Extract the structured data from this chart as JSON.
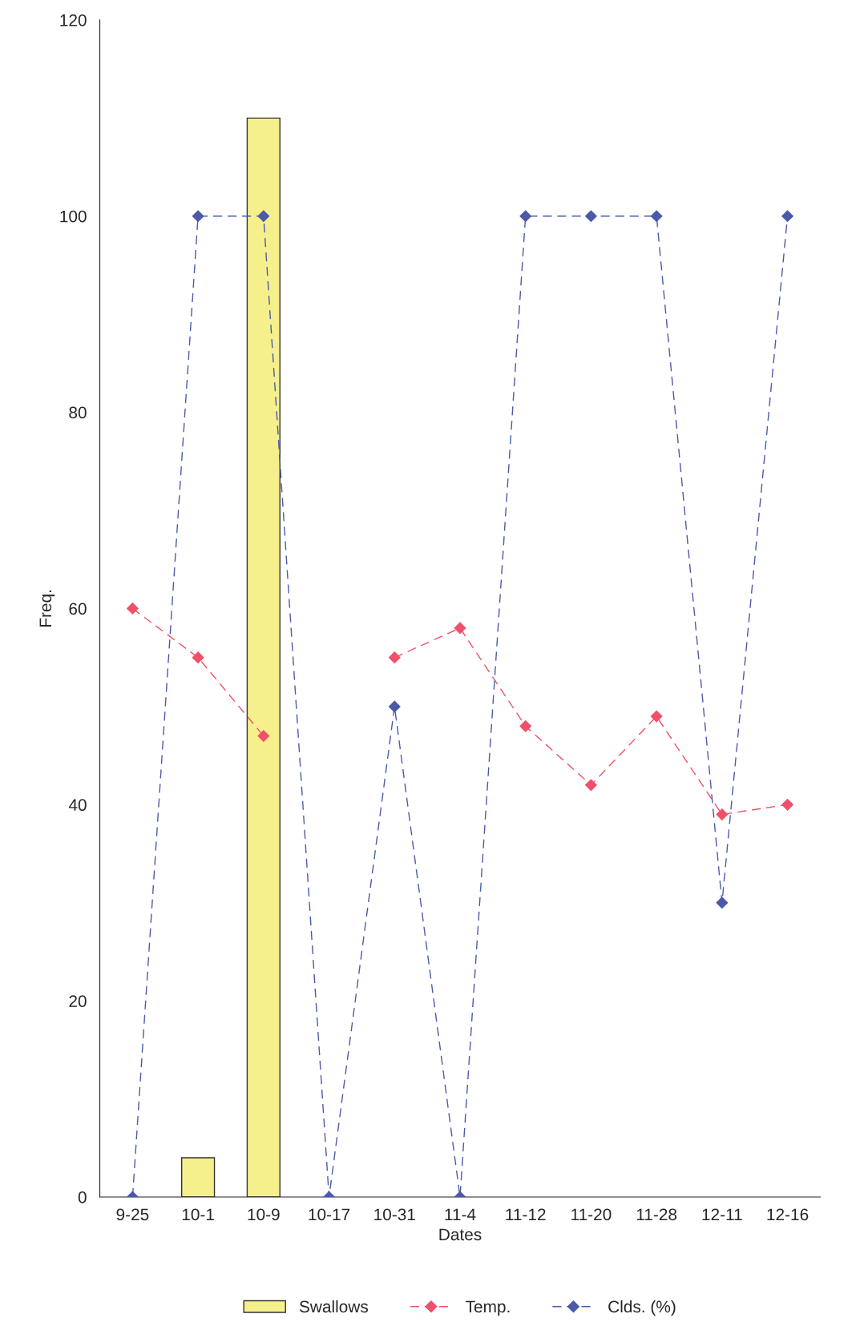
{
  "chart_data": {
    "type": "bar",
    "xlabel": "Dates",
    "ylabel": "Freq.",
    "categories": [
      "9-25",
      "10-1",
      "10-9",
      "10-17",
      "10-31",
      "11-4",
      "11-12",
      "11-20",
      "11-28",
      "12-11",
      "12-16"
    ],
    "series": [
      {
        "name": "Swallows",
        "color": "#f5f08c",
        "values": [
          null,
          4,
          110,
          null,
          null,
          null,
          null,
          null,
          null,
          null,
          null
        ]
      },
      {
        "name": "Temp.",
        "type": "line",
        "color": "#f0506a",
        "marker": "diamond",
        "line_style": "dashed",
        "values": [
          60,
          55,
          47,
          null,
          55,
          58,
          48,
          42,
          49,
          39,
          40
        ]
      },
      {
        "name": "Clds. (%)",
        "type": "line",
        "color": "#4a5aa8",
        "marker": "diamond",
        "line_style": "dashed",
        "values": [
          0,
          100,
          100,
          0,
          50,
          0,
          100,
          100,
          100,
          30,
          100
        ]
      }
    ],
    "ylim": [
      0,
      120
    ],
    "yticks": [
      0,
      20,
      40,
      60,
      80,
      100,
      120
    ],
    "grid": false,
    "legend": "bottom"
  }
}
